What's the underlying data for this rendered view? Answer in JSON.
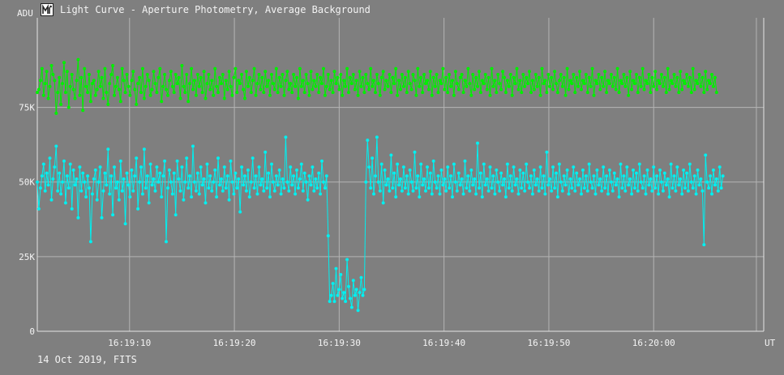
{
  "window": {
    "title": "Light Curve - Aperture Photometry, Average Background",
    "footer": "14 Oct 2019, FITS",
    "icon": "light-curve-app-icon"
  },
  "colors": {
    "background": "#7f7f7f",
    "grid": "#b4b4b4",
    "axis": "#e6e6e6",
    "text": "#f4f4f4",
    "series_green": "#00f000",
    "series_cyan": "#00f0f0"
  },
  "chart_data": {
    "type": "line",
    "title": "Light Curve - Aperture Photometry, Average Background",
    "ylabel": "ADU",
    "xlabel": "UT",
    "ylim": [
      0,
      105000
    ],
    "xlim": [
      "16:19:01.2",
      "16:20:10.5"
    ],
    "x_ticks": [
      "16:19:10",
      "16:19:20",
      "16:19:30",
      "16:19:40",
      "16:19:50",
      "16:20:00"
    ],
    "y_ticks": [
      {
        "value": 0,
        "label": "0"
      },
      {
        "value": 25000,
        "label": "25K"
      },
      {
        "value": 50000,
        "label": "50K"
      },
      {
        "value": 75000,
        "label": "75K"
      }
    ],
    "grid": true,
    "extra_vertical_gridline": "16:20:09.8",
    "sample_interval_s": 0.15,
    "series": [
      {
        "color": "#00f000",
        "x_start": "16:19:01.2",
        "values": [
          80000,
          81000,
          84000,
          88000,
          79000,
          83000,
          87000,
          78000,
          82000,
          89000,
          86000,
          84000,
          73000,
          80000,
          85000,
          76000,
          83000,
          90000,
          80000,
          87000,
          75000,
          82000,
          86000,
          81000,
          78000,
          84000,
          91000,
          79000,
          85000,
          74000,
          88000,
          82000,
          80000,
          86000,
          77000,
          83000,
          84000,
          79000,
          81000,
          87000,
          82000,
          85000,
          78000,
          88000,
          80000,
          76000,
          83000,
          86000,
          89000,
          79000,
          82000,
          85000,
          81000,
          77000,
          88000,
          84000,
          80000,
          86000,
          82000,
          79000,
          84000,
          87000,
          81000,
          76000,
          83000,
          85000,
          80000,
          88000,
          78000,
          82000,
          86000,
          84000,
          79000,
          81000,
          87000,
          83000,
          80000,
          85000,
          88000,
          77000,
          82000,
          86000,
          81000,
          79000,
          84000,
          87000,
          82000,
          80000,
          86000,
          83000,
          85000,
          78000,
          89000,
          82000,
          80000,
          86000,
          77000,
          83000,
          88000,
          81000,
          84000,
          79000,
          86000,
          82000,
          85000,
          80000,
          87000,
          78000,
          83000,
          86000,
          81000,
          84000,
          79000,
          88000,
          82000,
          80000,
          85000,
          83000,
          86000,
          78000,
          84000,
          81000,
          87000,
          82000,
          79000,
          85000,
          88000,
          80000,
          84000,
          83000,
          86000,
          81000,
          78000,
          87000,
          82000,
          85000,
          80000,
          84000,
          88000,
          79000,
          83000,
          86000,
          81000,
          85000,
          80000,
          87000,
          82000,
          84000,
          79000,
          86000,
          83000,
          81000,
          88000,
          80000,
          85000,
          82000,
          86000,
          79000,
          84000,
          87000,
          81000,
          83000,
          80000,
          86000,
          82000,
          85000,
          78000,
          88000,
          82000,
          84000,
          80000,
          86000,
          83000,
          79000,
          87000,
          81000,
          84000,
          82000,
          86000,
          80000,
          85000,
          83000,
          88000,
          79000,
          82000,
          86000,
          81000,
          84000,
          80000,
          87000,
          83000,
          85000,
          81000,
          86000,
          79000,
          84000,
          82000,
          88000,
          80000,
          85000,
          83000,
          86000,
          81000,
          84000,
          79000,
          87000,
          82000,
          85000,
          80000,
          86000,
          83000,
          81000,
          88000,
          82000,
          84000,
          80000,
          86000,
          83000,
          79000,
          85000,
          87000,
          81000,
          84000,
          82000,
          86000,
          80000,
          85000,
          83000,
          88000,
          79000,
          84000,
          81000,
          86000,
          82000,
          85000,
          80000,
          87000,
          83000,
          81000,
          86000,
          84000,
          79000,
          88000,
          82000,
          85000,
          80000,
          86000,
          83000,
          84000,
          81000,
          87000,
          79000,
          85000,
          82000,
          86000,
          80000,
          84000,
          83000,
          88000,
          81000,
          85000,
          80000,
          86000,
          82000,
          84000,
          79000,
          87000,
          83000,
          81000,
          85000,
          86000,
          80000,
          84000,
          82000,
          88000,
          83000,
          79000,
          86000,
          81000,
          85000,
          82000,
          87000,
          80000,
          84000,
          83000,
          86000,
          81000,
          85000,
          79000,
          88000,
          82000,
          84000,
          80000,
          86000,
          83000,
          81000,
          87000,
          85000,
          80000,
          84000,
          82000,
          86000,
          79000,
          85000,
          83000,
          88000,
          81000,
          84000,
          80000,
          86000,
          82000,
          85000,
          83000,
          87000,
          80000,
          84000,
          81000,
          86000,
          82000,
          85000,
          79000,
          88000,
          83000,
          84000,
          80000,
          86000,
          82000,
          85000,
          81000,
          87000,
          83000,
          80000,
          84000,
          86000,
          82000,
          85000,
          79000,
          88000,
          81000,
          84000,
          83000,
          86000,
          80000,
          85000,
          82000,
          87000,
          81000,
          84000,
          83000,
          86000,
          80000,
          85000,
          82000,
          88000,
          79000,
          84000,
          83000,
          86000,
          81000,
          85000,
          82000,
          87000,
          80000,
          84000,
          83000,
          86000,
          82000,
          85000,
          81000,
          88000,
          80000,
          84000,
          83000,
          86000,
          82000,
          85000,
          79000,
          87000,
          81000,
          84000,
          83000,
          86000,
          80000,
          85000,
          82000,
          88000,
          81000,
          84000,
          83000,
          86000,
          80000,
          85000,
          82000,
          87000,
          81000,
          84000,
          83000,
          86000,
          82000,
          85000,
          80000,
          88000,
          81000,
          84000,
          83000,
          86000,
          82000,
          85000,
          80000,
          87000,
          81000,
          84000,
          83000,
          86000,
          82000,
          85000,
          80000,
          88000,
          81000,
          84000,
          83000,
          86000,
          82000,
          85000,
          80000,
          87000,
          81000,
          84000,
          83000,
          86000,
          82000,
          85000,
          80000
        ]
      },
      {
        "color": "#00f0f0",
        "x_start": "16:19:01.2",
        "values": [
          50000,
          41000,
          48000,
          52000,
          56000,
          47000,
          53000,
          49000,
          58000,
          44000,
          51000,
          55000,
          62000,
          47000,
          53000,
          46000,
          50000,
          57000,
          43000,
          52000,
          48000,
          56000,
          41000,
          54000,
          49000,
          51000,
          38000,
          55000,
          47000,
          53000,
          50000,
          45000,
          52000,
          48000,
          30000,
          46000,
          51000,
          54000,
          44000,
          50000,
          55000,
          38000,
          47000,
          53000,
          49000,
          61000,
          46000,
          52000,
          39000,
          55000,
          48000,
          50000,
          44000,
          57000,
          47000,
          51000,
          36000,
          53000,
          49000,
          45000,
          54000,
          47000,
          52000,
          58000,
          41000,
          50000,
          55000,
          46000,
          61000,
          48000,
          52000,
          43000,
          56000,
          49000,
          51000,
          47000,
          55000,
          50000,
          53000,
          45000,
          52000,
          57000,
          30000,
          48000,
          54000,
          50000,
          46000,
          53000,
          39000,
          57000,
          51000,
          47000,
          55000,
          44000,
          50000,
          58000,
          48000,
          52000,
          45000,
          62000,
          50000,
          47000,
          53000,
          46000,
          55000,
          49000,
          51000,
          43000,
          56000,
          48000,
          52000,
          47000,
          50000,
          54000,
          45000,
          58000,
          49000,
          51000,
          47000,
          55000,
          48000,
          52000,
          44000,
          57000,
          50000,
          46000,
          53000,
          48000,
          51000,
          40000,
          55000,
          49000,
          52000,
          47000,
          54000,
          45000,
          50000,
          58000,
          48000,
          52000,
          46000,
          55000,
          49000,
          51000,
          47000,
          60000,
          48000,
          53000,
          45000,
          56000,
          50000,
          47000,
          52000,
          49000,
          54000,
          46000,
          51000,
          48000,
          65000,
          50000,
          47000,
          55000,
          49000,
          52000,
          46000,
          54000,
          48000,
          51000,
          56000,
          47000,
          53000,
          50000,
          44000,
          52000,
          49000,
          55000,
          47000,
          51000,
          48000,
          53000,
          46000,
          57000,
          50000,
          48000,
          52000,
          32000,
          10000,
          12000,
          16000,
          10000,
          21000,
          12000,
          14000,
          19000,
          11000,
          13000,
          10000,
          24000,
          15000,
          11000,
          8000,
          17000,
          12000,
          14000,
          7000,
          13000,
          18000,
          12000,
          14000,
          50000,
          64000,
          55000,
          48000,
          58000,
          46000,
          52000,
          65000,
          50000,
          47000,
          56000,
          43000,
          54000,
          49000,
          51000,
          47000,
          59000,
          48000,
          53000,
          45000,
          56000,
          49000,
          51000,
          47000,
          55000,
          48000,
          52000,
          46000,
          54000,
          50000,
          47000,
          60000,
          48000,
          52000,
          45000,
          56000,
          49000,
          51000,
          47000,
          55000,
          48000,
          53000,
          46000,
          57000,
          50000,
          48000,
          52000,
          46000,
          54000,
          49000,
          51000,
          47000,
          55000,
          48000,
          52000,
          45000,
          56000,
          50000,
          47000,
          53000,
          49000,
          51000,
          46000,
          57000,
          48000,
          52000,
          47000,
          54000,
          49000,
          51000,
          46000,
          63000,
          48000,
          53000,
          45000,
          56000,
          49000,
          51000,
          47000,
          55000,
          48000,
          52000,
          46000,
          54000,
          50000,
          47000,
          53000,
          49000,
          51000,
          45000,
          56000,
          48000,
          52000,
          47000,
          55000,
          49000,
          51000,
          46000,
          54000,
          48000,
          53000,
          47000,
          56000,
          50000,
          48000,
          52000,
          46000,
          54000,
          49000,
          51000,
          47000,
          55000,
          48000,
          52000,
          46000,
          60000,
          49000,
          51000,
          47000,
          55000,
          48000,
          53000,
          45000,
          56000,
          50000,
          47000,
          52000,
          49000,
          54000,
          46000,
          51000,
          48000,
          55000,
          47000,
          53000,
          49000,
          51000,
          46000,
          54000,
          48000,
          52000,
          47000,
          56000,
          50000,
          48000,
          52000,
          46000,
          54000,
          49000,
          51000,
          47000,
          55000,
          48000,
          52000,
          46000,
          54000,
          50000,
          47000,
          53000,
          49000,
          51000,
          45000,
          56000,
          48000,
          52000,
          47000,
          55000,
          49000,
          51000,
          46000,
          54000,
          48000,
          53000,
          47000,
          56000,
          50000,
          48000,
          52000,
          46000,
          54000,
          49000,
          51000,
          47000,
          55000,
          48000,
          52000,
          46000,
          54000,
          50000,
          47000,
          53000,
          49000,
          51000,
          45000,
          56000,
          48000,
          52000,
          47000,
          55000,
          49000,
          51000,
          46000,
          54000,
          48000,
          53000,
          47000,
          56000,
          50000,
          48000,
          52000,
          46000,
          54000,
          49000,
          51000,
          47000,
          29000,
          59000,
          50000,
          48000,
          52000,
          46000,
          54000,
          49000,
          51000,
          47000,
          55000,
          48000,
          52000
        ]
      }
    ]
  }
}
